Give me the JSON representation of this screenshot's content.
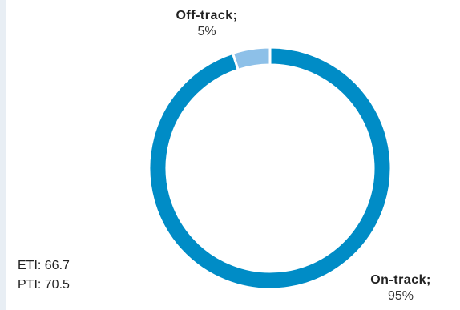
{
  "chart_data": {
    "type": "pie",
    "variant": "donut",
    "title": "",
    "categories": [
      "Off-track",
      "On-track"
    ],
    "values": [
      5,
      95
    ],
    "labels": [
      {
        "name": "Off-track;",
        "value": "5%"
      },
      {
        "name": "On-track;",
        "value": "95%"
      }
    ],
    "colors": [
      "#8dc0e8",
      "#008cc6"
    ],
    "legend": "none"
  },
  "metrics": {
    "eti": "ETI: 66.7",
    "pti": "PTI: 70.5"
  }
}
